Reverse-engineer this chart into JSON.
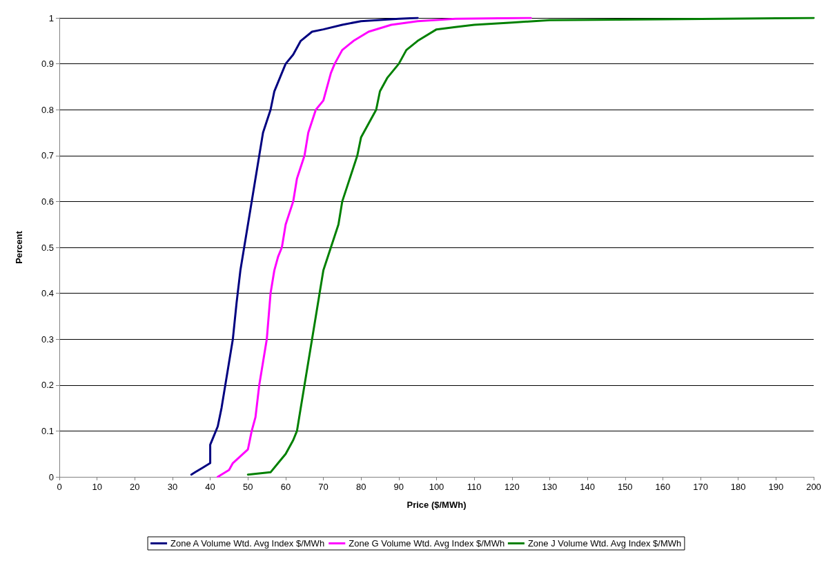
{
  "chart_data": {
    "type": "line",
    "xlabel": "Price ($/MWh)",
    "ylabel": "Percent",
    "xlim": [
      0,
      200
    ],
    "xticks": [
      0,
      10,
      20,
      30,
      40,
      50,
      60,
      70,
      80,
      90,
      100,
      110,
      120,
      130,
      140,
      150,
      160,
      170,
      180,
      190,
      200
    ],
    "ylim": [
      0,
      1
    ],
    "yticks": [
      0,
      0.1,
      0.2,
      0.3,
      0.4,
      0.5,
      0.6,
      0.7,
      0.8,
      0.9,
      1
    ],
    "grid": "y",
    "legend": "bottom",
    "marker": "none",
    "line_style": "solid",
    "series": [
      {
        "name": "Zone A Volume Wtd. Avg Index $/MWh",
        "color": "#000080",
        "x": [
          35,
          36,
          38,
          40,
          40,
          41,
          42,
          43,
          44,
          45,
          46,
          47,
          48,
          49,
          50,
          51,
          52,
          53,
          54,
          56,
          57,
          59,
          60,
          62,
          64,
          67,
          70,
          75,
          80,
          90,
          95
        ],
        "values": [
          0.005,
          0.01,
          0.02,
          0.03,
          0.07,
          0.09,
          0.11,
          0.15,
          0.2,
          0.25,
          0.3,
          0.38,
          0.45,
          0.5,
          0.55,
          0.6,
          0.65,
          0.7,
          0.75,
          0.8,
          0.84,
          0.88,
          0.9,
          0.92,
          0.95,
          0.97,
          0.975,
          0.985,
          0.993,
          0.998,
          1
        ]
      },
      {
        "name": "Zone G Volume Wtd. Avg Index $/MWh",
        "color": "#ff00ff",
        "x": [
          42,
          45,
          46,
          48,
          50,
          51,
          52,
          53,
          54,
          55,
          56,
          57,
          58,
          59,
          60,
          62,
          63,
          65,
          66,
          68,
          70,
          72,
          73,
          75,
          78,
          82,
          88,
          95,
          105,
          125
        ],
        "values": [
          0,
          0.015,
          0.03,
          0.045,
          0.06,
          0.1,
          0.13,
          0.2,
          0.25,
          0.3,
          0.4,
          0.45,
          0.48,
          0.5,
          0.55,
          0.6,
          0.65,
          0.7,
          0.75,
          0.8,
          0.82,
          0.88,
          0.9,
          0.93,
          0.95,
          0.97,
          0.985,
          0.993,
          0.998,
          1
        ]
      },
      {
        "name": "Zone J Volume Wtd. Avg Index $/MWh",
        "color": "#008000",
        "x": [
          50,
          56,
          58,
          60,
          62,
          63,
          64,
          65,
          66,
          67,
          68,
          69,
          70,
          72,
          74,
          75,
          77,
          79,
          80,
          82,
          84,
          85,
          87,
          90,
          92,
          95,
          100,
          105,
          110,
          120,
          130,
          160,
          200
        ],
        "values": [
          0.005,
          0.01,
          0.03,
          0.05,
          0.08,
          0.1,
          0.15,
          0.2,
          0.25,
          0.3,
          0.35,
          0.4,
          0.45,
          0.5,
          0.55,
          0.6,
          0.65,
          0.7,
          0.74,
          0.77,
          0.8,
          0.84,
          0.87,
          0.9,
          0.93,
          0.95,
          0.975,
          0.98,
          0.985,
          0.99,
          0.995,
          0.997,
          1
        ]
      }
    ]
  }
}
